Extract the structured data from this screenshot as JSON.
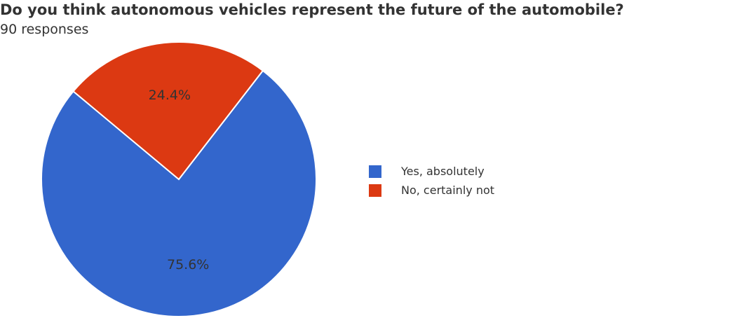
{
  "header": {
    "title": "Do you think autonomous vehicles represent the future of the automobile?",
    "subtitle": "90 responses"
  },
  "legend": [
    {
      "label": "Yes, absolutely",
      "color": "#3366cc"
    },
    {
      "label": "No, certainly not",
      "color": "#dc3912"
    }
  ],
  "slices": [
    {
      "label": "75.6%",
      "color": "#3366cc"
    },
    {
      "label": "24.4%",
      "color": "#dc3912"
    }
  ],
  "chart_data": {
    "type": "pie",
    "title": "Do you think autonomous vehicles represent the future of the automobile?",
    "subtitle": "90 responses",
    "categories": [
      "Yes, absolutely",
      "No, certainly not"
    ],
    "values": [
      75.6,
      24.4
    ],
    "counts_estimated": [
      68,
      22
    ],
    "colors": [
      "#3366cc",
      "#dc3912"
    ],
    "legend_position": "right"
  }
}
